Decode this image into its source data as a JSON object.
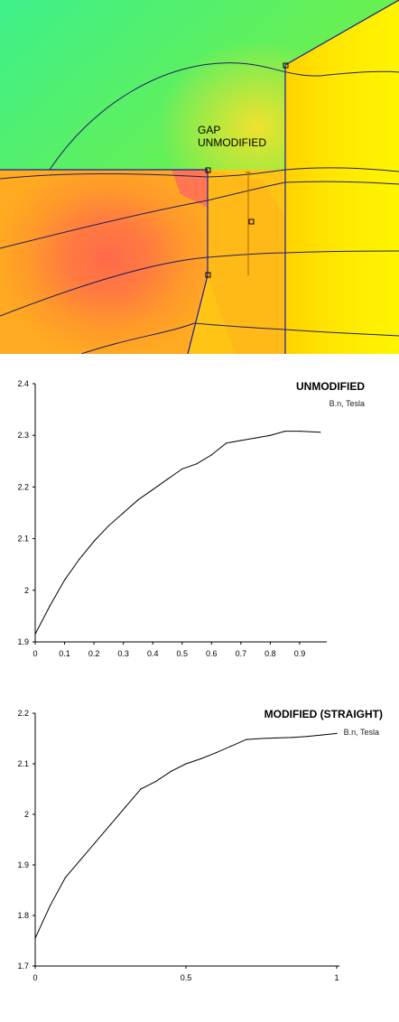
{
  "field_plot": {
    "label_line1": "GAP",
    "label_line2": "UNMODIFIED"
  },
  "chart_data": [
    {
      "type": "line",
      "title": "UNMODIFIED",
      "xlabel": "",
      "ylabel": "",
      "xlim": [
        0,
        0.98
      ],
      "ylim": [
        1.9,
        2.4
      ],
      "xticks": [
        0,
        0.1,
        0.2,
        0.3,
        0.4,
        0.5,
        0.6,
        0.7,
        0.8,
        0.9
      ],
      "xtick_labels": [
        "0",
        "0.1",
        "0.2",
        "0.3",
        "0.4",
        "0.5",
        "0.6",
        "0.7",
        "0.8",
        "0.9"
      ],
      "yticks": [
        1.9,
        2.0,
        2.1,
        2.2,
        2.3,
        2.4
      ],
      "ytick_labels": [
        "1.9",
        "2",
        "2.1",
        "2.2",
        "2.3",
        "2.4"
      ],
      "grid": false,
      "series": [
        {
          "name": "B.n, Tesla",
          "x": [
            0,
            0.05,
            0.1,
            0.15,
            0.2,
            0.25,
            0.3,
            0.35,
            0.4,
            0.45,
            0.5,
            0.55,
            0.6,
            0.65,
            0.7,
            0.75,
            0.8,
            0.85,
            0.9,
            0.97
          ],
          "y": [
            1.915,
            1.97,
            2.02,
            2.06,
            2.095,
            2.125,
            2.15,
            2.175,
            2.195,
            2.215,
            2.235,
            2.245,
            2.262,
            2.285,
            2.29,
            2.295,
            2.3,
            2.308,
            2.308,
            2.306
          ]
        }
      ]
    },
    {
      "type": "line",
      "title": "MODIFIED (STRAIGHT)",
      "xlabel": "",
      "ylabel": "",
      "xlim": [
        0,
        1
      ],
      "ylim": [
        1.7,
        2.2
      ],
      "xticks": [
        0,
        0.5,
        1
      ],
      "xtick_labels": [
        "0",
        "0.5",
        "1"
      ],
      "yticks": [
        1.7,
        1.8,
        1.9,
        2.0,
        2.1,
        2.2
      ],
      "ytick_labels": [
        "1.7",
        "1.8",
        "1.9",
        "2",
        "2.1",
        "2.2"
      ],
      "grid": false,
      "series": [
        {
          "name": "B.n, Tesla",
          "x": [
            0,
            0.05,
            0.1,
            0.15,
            0.2,
            0.25,
            0.3,
            0.35,
            0.4,
            0.45,
            0.5,
            0.55,
            0.6,
            0.65,
            0.7,
            0.75,
            0.8,
            0.85,
            0.9,
            0.95,
            1.0
          ],
          "y": [
            1.755,
            1.82,
            1.875,
            1.91,
            1.945,
            1.98,
            2.015,
            2.05,
            2.065,
            2.085,
            2.1,
            2.11,
            2.122,
            2.135,
            2.148,
            2.15,
            2.151,
            2.152,
            2.154,
            2.157,
            2.16
          ]
        }
      ]
    }
  ]
}
